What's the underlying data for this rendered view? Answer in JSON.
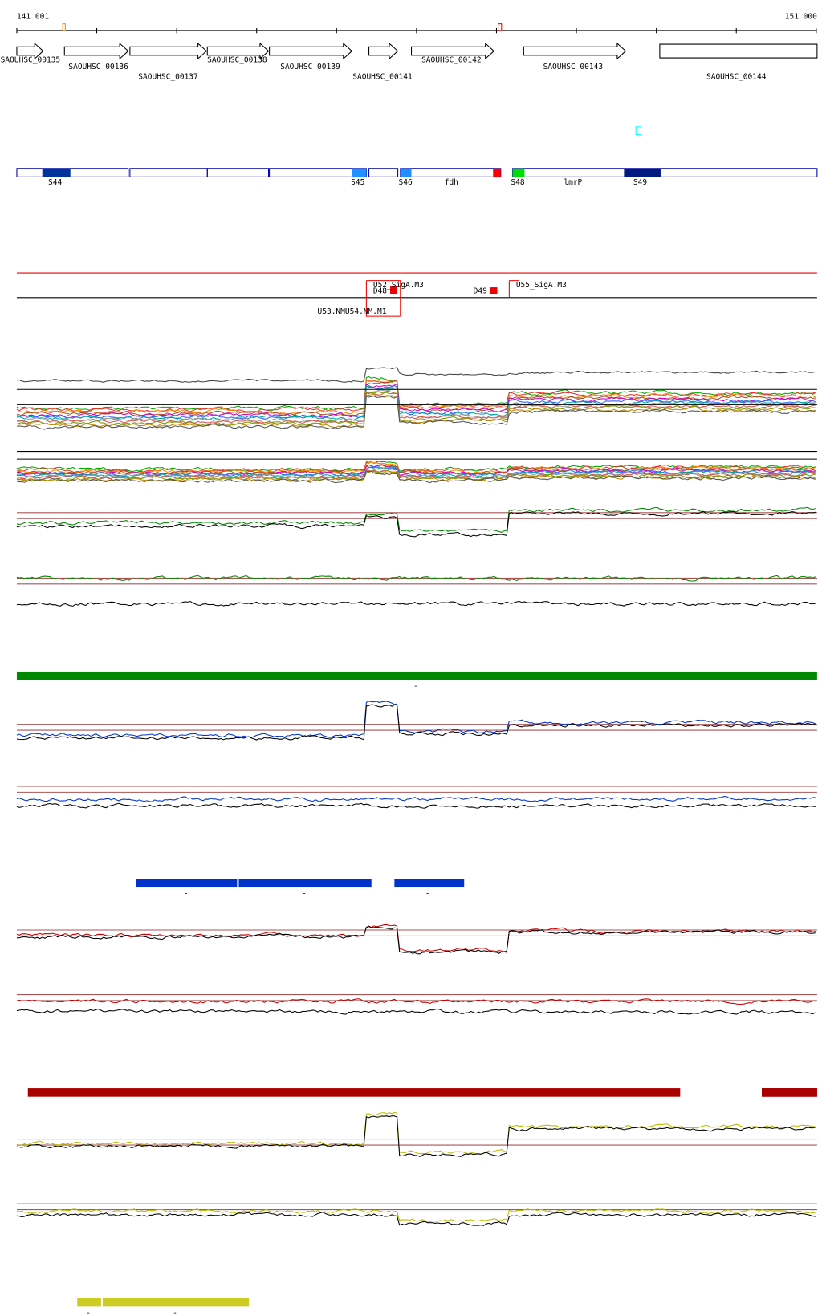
{
  "ruler": {
    "start": "141 001",
    "end": "151 000"
  },
  "genes": [
    "SAOUHSC_00135",
    "SAOUHSC_00136",
    "SAOUHSC_00137",
    "SAOUHSC_00138",
    "SAOUHSC_00139",
    "SAOUHSC_00141",
    "SAOUHSC_00142",
    "SAOUHSC_00143",
    "SAOUHSC_00144"
  ],
  "segments": [
    "S44",
    "S45",
    "S46",
    "fdh",
    "S48",
    "lmrP",
    "S49"
  ],
  "features": [
    "U52_SigA.M3",
    "D48",
    "D49",
    "U55_SigA.M3",
    "U53.NM",
    "U54.NM.M1"
  ],
  "regions": {
    "green": [
      "-"
    ],
    "blue": [
      "-",
      "-",
      "-"
    ],
    "red": [
      "-",
      "-",
      "-"
    ],
    "yellow": [
      "-",
      "-"
    ]
  }
}
